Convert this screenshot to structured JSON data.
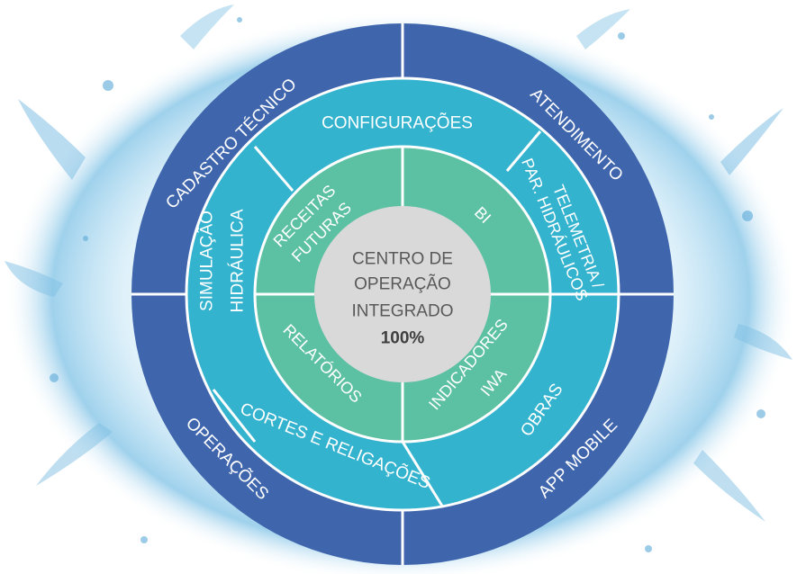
{
  "outer_ring": {
    "cadastro": "CADASTRO TÉCNICO",
    "atendimento": "ATENDIMENTO",
    "operacoes": "OPERAÇÕES",
    "app_mobile": "APP MOBILE"
  },
  "middle_ring": {
    "configuracoes": "CONFIGURAÇÕES",
    "telemetria_line1": "TELEMETRIA /",
    "telemetria_line2": "PAR. HIDRÁULICOS",
    "obras": "OBRAS",
    "cortes": "CORTES E RELIGAÇÕES",
    "simulacao_line1": "SIMULAÇÃO",
    "simulacao_line2": "HIDRÁULICA"
  },
  "inner_ring": {
    "receitas_line1": "RECEITAS",
    "receitas_line2": "FUTURAS",
    "bi": "BI",
    "indicadores_line1": "INDICADORES",
    "indicadores_line2": "IWA",
    "relatorios": "RELATÓRIOS"
  },
  "center": {
    "line1": "CENTRO DE",
    "line2": "OPERAÇÃO",
    "line3": "INTEGRADO",
    "line4": "100%"
  },
  "colors": {
    "outer": "#3f65ad",
    "middle": "#34b3cf",
    "inner": "#5cc0a2",
    "center": "#d9d9d9",
    "divider": "#ffffff",
    "splash": "#8cc9e8"
  }
}
